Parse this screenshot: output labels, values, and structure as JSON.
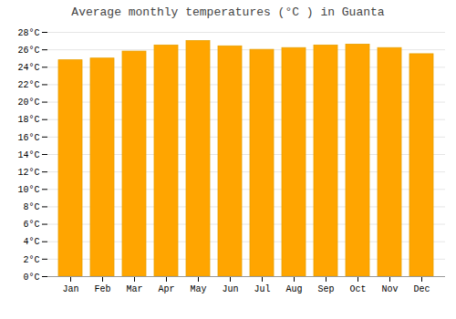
{
  "chart_data": {
    "type": "bar",
    "title": "Average monthly temperatures (°C ) in Guanta",
    "categories": [
      "Jan",
      "Feb",
      "Mar",
      "Apr",
      "May",
      "Jun",
      "Jul",
      "Aug",
      "Sep",
      "Oct",
      "Nov",
      "Dec"
    ],
    "values": [
      24.8,
      25.0,
      25.8,
      26.5,
      27.0,
      26.4,
      26.0,
      26.2,
      26.5,
      26.6,
      26.2,
      25.5
    ],
    "color": "#FFA500",
    "ylim": [
      0,
      28
    ],
    "yticks": [
      {
        "value": 0,
        "label": "0°C"
      },
      {
        "value": 2,
        "label": "2°C"
      },
      {
        "value": 4,
        "label": "4°C"
      },
      {
        "value": 6,
        "label": "6°C"
      },
      {
        "value": 8,
        "label": "8°C"
      },
      {
        "value": 10,
        "label": "10°C"
      },
      {
        "value": 12,
        "label": "12°C"
      },
      {
        "value": 14,
        "label": "14°C"
      },
      {
        "value": 16,
        "label": "16°C"
      },
      {
        "value": 18,
        "label": "18°C"
      },
      {
        "value": 20,
        "label": "20°C"
      },
      {
        "value": 22,
        "label": "22°C"
      },
      {
        "value": 24,
        "label": "24°C"
      },
      {
        "value": 26,
        "label": "26°C"
      },
      {
        "value": 28,
        "label": "28°C"
      }
    ],
    "grid": true
  }
}
